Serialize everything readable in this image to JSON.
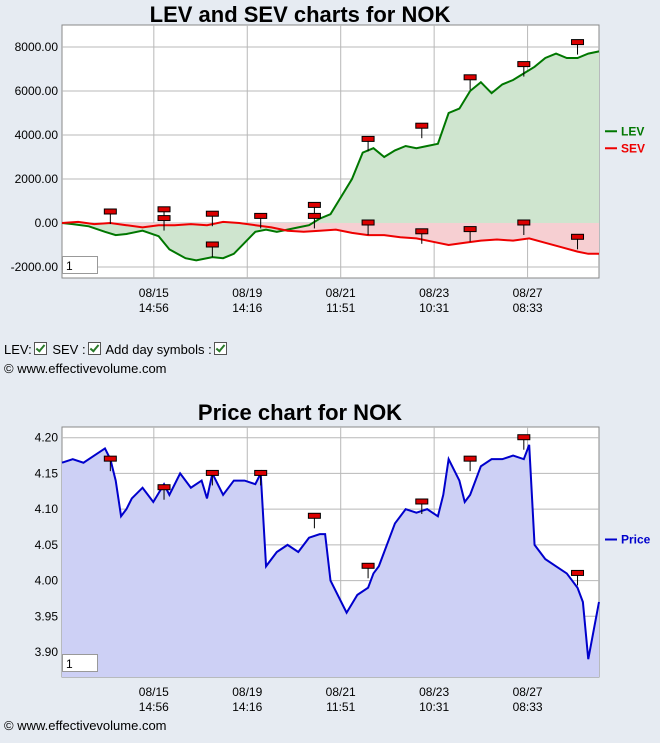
{
  "chart_data": [
    {
      "type": "area",
      "title": "LEV and SEV charts for NOK",
      "ylim": [
        -2500,
        9000
      ],
      "yticks": [
        "8000.00",
        "6000.00",
        "4000.00",
        "2000.00",
        "0.00",
        "-2000.00"
      ],
      "ytick_values": [
        8000,
        6000,
        4000,
        2000,
        0,
        -2000
      ],
      "xticks": [
        {
          "date": "08/15",
          "time": "14:56",
          "t": 0.171
        },
        {
          "date": "08/19",
          "time": "14:16",
          "t": 0.345
        },
        {
          "date": "08/21",
          "time": "11:51",
          "t": 0.519
        },
        {
          "date": "08/23",
          "time": "10:31",
          "t": 0.693
        },
        {
          "date": "08/27",
          "time": "08:33",
          "t": 0.867
        }
      ],
      "series": [
        {
          "name": "LEV",
          "color": "#007700",
          "fill": "#cfe5cf",
          "points": [
            [
              0,
              0
            ],
            [
              0.02,
              -50
            ],
            [
              0.05,
              -150
            ],
            [
              0.08,
              -400
            ],
            [
              0.1,
              -550
            ],
            [
              0.12,
              -500
            ],
            [
              0.15,
              -350
            ],
            [
              0.18,
              -600
            ],
            [
              0.2,
              -1200
            ],
            [
              0.23,
              -1600
            ],
            [
              0.25,
              -1700
            ],
            [
              0.28,
              -1550
            ],
            [
              0.3,
              -1600
            ],
            [
              0.32,
              -1400
            ],
            [
              0.34,
              -900
            ],
            [
              0.36,
              -400
            ],
            [
              0.38,
              -300
            ],
            [
              0.4,
              -400
            ],
            [
              0.42,
              -300
            ],
            [
              0.44,
              -200
            ],
            [
              0.46,
              -100
            ],
            [
              0.48,
              200
            ],
            [
              0.5,
              400
            ],
            [
              0.52,
              1200
            ],
            [
              0.54,
              2000
            ],
            [
              0.56,
              3200
            ],
            [
              0.58,
              3400
            ],
            [
              0.6,
              3000
            ],
            [
              0.62,
              3300
            ],
            [
              0.64,
              3500
            ],
            [
              0.66,
              3400
            ],
            [
              0.68,
              3500
            ],
            [
              0.7,
              3600
            ],
            [
              0.72,
              5000
            ],
            [
              0.74,
              5200
            ],
            [
              0.76,
              6000
            ],
            [
              0.78,
              6400
            ],
            [
              0.8,
              5900
            ],
            [
              0.82,
              6300
            ],
            [
              0.84,
              6500
            ],
            [
              0.86,
              6800
            ],
            [
              0.88,
              7100
            ],
            [
              0.9,
              7500
            ],
            [
              0.92,
              7700
            ],
            [
              0.94,
              7500
            ],
            [
              0.96,
              7500
            ],
            [
              0.98,
              7700
            ],
            [
              1,
              7800
            ]
          ]
        },
        {
          "name": "SEV",
          "color": "#ee0000",
          "fill": "#f6cfd2",
          "points": [
            [
              0,
              0
            ],
            [
              0.03,
              50
            ],
            [
              0.06,
              -50
            ],
            [
              0.09,
              0
            ],
            [
              0.12,
              -100
            ],
            [
              0.15,
              -200
            ],
            [
              0.18,
              -100
            ],
            [
              0.21,
              -100
            ],
            [
              0.24,
              -50
            ],
            [
              0.27,
              -100
            ],
            [
              0.3,
              50
            ],
            [
              0.33,
              0
            ],
            [
              0.36,
              -100
            ],
            [
              0.39,
              -200
            ],
            [
              0.42,
              -350
            ],
            [
              0.45,
              -400
            ],
            [
              0.48,
              -350
            ],
            [
              0.51,
              -300
            ],
            [
              0.54,
              -450
            ],
            [
              0.57,
              -550
            ],
            [
              0.6,
              -550
            ],
            [
              0.63,
              -650
            ],
            [
              0.66,
              -700
            ],
            [
              0.69,
              -850
            ],
            [
              0.72,
              -1000
            ],
            [
              0.75,
              -900
            ],
            [
              0.78,
              -800
            ],
            [
              0.81,
              -750
            ],
            [
              0.84,
              -800
            ],
            [
              0.87,
              -700
            ],
            [
              0.9,
              -900
            ],
            [
              0.93,
              -1100
            ],
            [
              0.96,
              -1300
            ],
            [
              0.98,
              -1400
            ],
            [
              1,
              -1400
            ]
          ]
        }
      ],
      "day_markers": [
        {
          "t": 0.09,
          "v": 500
        },
        {
          "t": 0.19,
          "v": 600
        },
        {
          "t": 0.19,
          "v": 200
        },
        {
          "t": 0.28,
          "v": 400
        },
        {
          "t": 0.37,
          "v": 300
        },
        {
          "t": 0.47,
          "v": 800
        },
        {
          "t": 0.47,
          "v": 300
        },
        {
          "t": 0.57,
          "v": 3800
        },
        {
          "t": 0.67,
          "v": 4400
        },
        {
          "t": 0.76,
          "v": 6600
        },
        {
          "t": 0.86,
          "v": 7200
        },
        {
          "t": 0.96,
          "v": 8200
        },
        {
          "t": 0.28,
          "v": -1000
        },
        {
          "t": 0.57,
          "v": 0
        },
        {
          "t": 0.67,
          "v": -400
        },
        {
          "t": 0.76,
          "v": -300
        },
        {
          "t": 0.86,
          "v": 0
        },
        {
          "t": 0.96,
          "v": -650
        }
      ],
      "zoom_value": "1"
    },
    {
      "type": "area",
      "title": "Price chart for NOK",
      "ylim": [
        3.865,
        4.215
      ],
      "yticks": [
        "4.20",
        "4.15",
        "4.10",
        "4.05",
        "4.00",
        "3.95",
        "3.90"
      ],
      "ytick_values": [
        4.2,
        4.15,
        4.1,
        4.05,
        4.0,
        3.95,
        3.9
      ],
      "xticks": [
        {
          "date": "08/15",
          "time": "14:56",
          "t": 0.171
        },
        {
          "date": "08/19",
          "time": "14:16",
          "t": 0.345
        },
        {
          "date": "08/21",
          "time": "11:51",
          "t": 0.519
        },
        {
          "date": "08/23",
          "time": "10:31",
          "t": 0.693
        },
        {
          "date": "08/27",
          "time": "08:33",
          "t": 0.867
        }
      ],
      "series": [
        {
          "name": "Price",
          "color": "#0000cc",
          "fill": "#cdd0f5",
          "points": [
            [
              0,
              4.165
            ],
            [
              0.02,
              4.17
            ],
            [
              0.04,
              4.165
            ],
            [
              0.06,
              4.175
            ],
            [
              0.08,
              4.185
            ],
            [
              0.09,
              4.17
            ],
            [
              0.1,
              4.14
            ],
            [
              0.11,
              4.09
            ],
            [
              0.12,
              4.1
            ],
            [
              0.13,
              4.115
            ],
            [
              0.15,
              4.13
            ],
            [
              0.17,
              4.11
            ],
            [
              0.19,
              4.135
            ],
            [
              0.2,
              4.12
            ],
            [
              0.22,
              4.15
            ],
            [
              0.24,
              4.13
            ],
            [
              0.26,
              4.14
            ],
            [
              0.27,
              4.115
            ],
            [
              0.28,
              4.15
            ],
            [
              0.3,
              4.12
            ],
            [
              0.32,
              4.14
            ],
            [
              0.34,
              4.14
            ],
            [
              0.36,
              4.135
            ],
            [
              0.37,
              4.15
            ],
            [
              0.38,
              4.02
            ],
            [
              0.4,
              4.04
            ],
            [
              0.42,
              4.05
            ],
            [
              0.44,
              4.04
            ],
            [
              0.46,
              4.06
            ],
            [
              0.48,
              4.065
            ],
            [
              0.49,
              4.065
            ],
            [
              0.5,
              4.0
            ],
            [
              0.52,
              3.97
            ],
            [
              0.53,
              3.955
            ],
            [
              0.55,
              3.98
            ],
            [
              0.57,
              3.99
            ],
            [
              0.58,
              4.01
            ],
            [
              0.59,
              4.02
            ],
            [
              0.6,
              4.04
            ],
            [
              0.62,
              4.08
            ],
            [
              0.64,
              4.1
            ],
            [
              0.66,
              4.095
            ],
            [
              0.68,
              4.1
            ],
            [
              0.7,
              4.09
            ],
            [
              0.71,
              4.12
            ],
            [
              0.72,
              4.17
            ],
            [
              0.74,
              4.14
            ],
            [
              0.75,
              4.11
            ],
            [
              0.76,
              4.12
            ],
            [
              0.78,
              4.16
            ],
            [
              0.8,
              4.17
            ],
            [
              0.82,
              4.17
            ],
            [
              0.84,
              4.175
            ],
            [
              0.86,
              4.17
            ],
            [
              0.87,
              4.19
            ],
            [
              0.88,
              4.05
            ],
            [
              0.9,
              4.03
            ],
            [
              0.92,
              4.02
            ],
            [
              0.94,
              4.01
            ],
            [
              0.96,
              3.99
            ],
            [
              0.97,
              3.97
            ],
            [
              0.98,
              3.89
            ],
            [
              0.99,
              3.93
            ],
            [
              1,
              3.97
            ]
          ]
        }
      ],
      "day_markers": [
        {
          "t": 0.09,
          "v": 4.17
        },
        {
          "t": 0.19,
          "v": 4.13
        },
        {
          "t": 0.28,
          "v": 4.15
        },
        {
          "t": 0.37,
          "v": 4.15
        },
        {
          "t": 0.47,
          "v": 4.09
        },
        {
          "t": 0.57,
          "v": 4.02
        },
        {
          "t": 0.67,
          "v": 4.11
        },
        {
          "t": 0.76,
          "v": 4.17
        },
        {
          "t": 0.86,
          "v": 4.2
        },
        {
          "t": 0.96,
          "v": 4.01
        }
      ],
      "zoom_value": "1"
    }
  ],
  "options": {
    "lev_label": "LEV:",
    "sev_label": "SEV :",
    "day_label": "Add day symbols :"
  },
  "copyright": "© www.effectivevolume.com"
}
